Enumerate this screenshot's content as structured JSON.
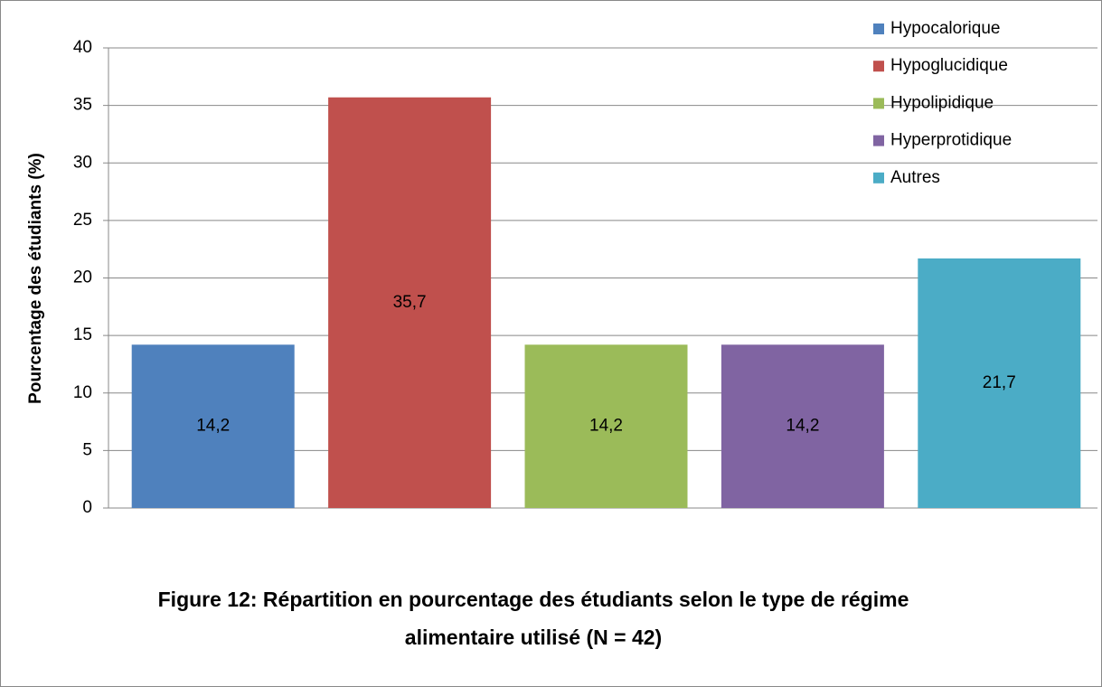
{
  "chart_data": {
    "type": "bar",
    "title": "Figure 12: Répartition en pourcentage des étudiants selon le type de régime alimentaire utilisé (N = 42)",
    "y_label": "Pourcentage des étudiants (%)",
    "series": [
      {
        "name": "Hypocalorique",
        "color": "#4f81bd",
        "values": [
          14.2
        ],
        "value_labels": [
          "14,2"
        ]
      },
      {
        "name": "Hypoglucidique",
        "color": "#c0504d",
        "values": [
          35.7
        ],
        "value_labels": [
          "35,7"
        ]
      },
      {
        "name": "Hypolipidique",
        "color": "#9bbb59",
        "values": [
          14.2
        ],
        "value_labels": [
          "14,2"
        ]
      },
      {
        "name": "Hyperprotidique",
        "color": "#8064a2",
        "values": [
          14.2
        ],
        "value_labels": [
          "14,2"
        ]
      },
      {
        "name": "Autres",
        "color": "#4bacc6",
        "values": [
          21.7
        ],
        "value_labels": [
          "21,7"
        ]
      }
    ],
    "ylim": [
      0,
      40
    ],
    "yticks": [
      0,
      5,
      10,
      15,
      20,
      25,
      30,
      35,
      40
    ],
    "grid": true,
    "legend": "top-right"
  }
}
